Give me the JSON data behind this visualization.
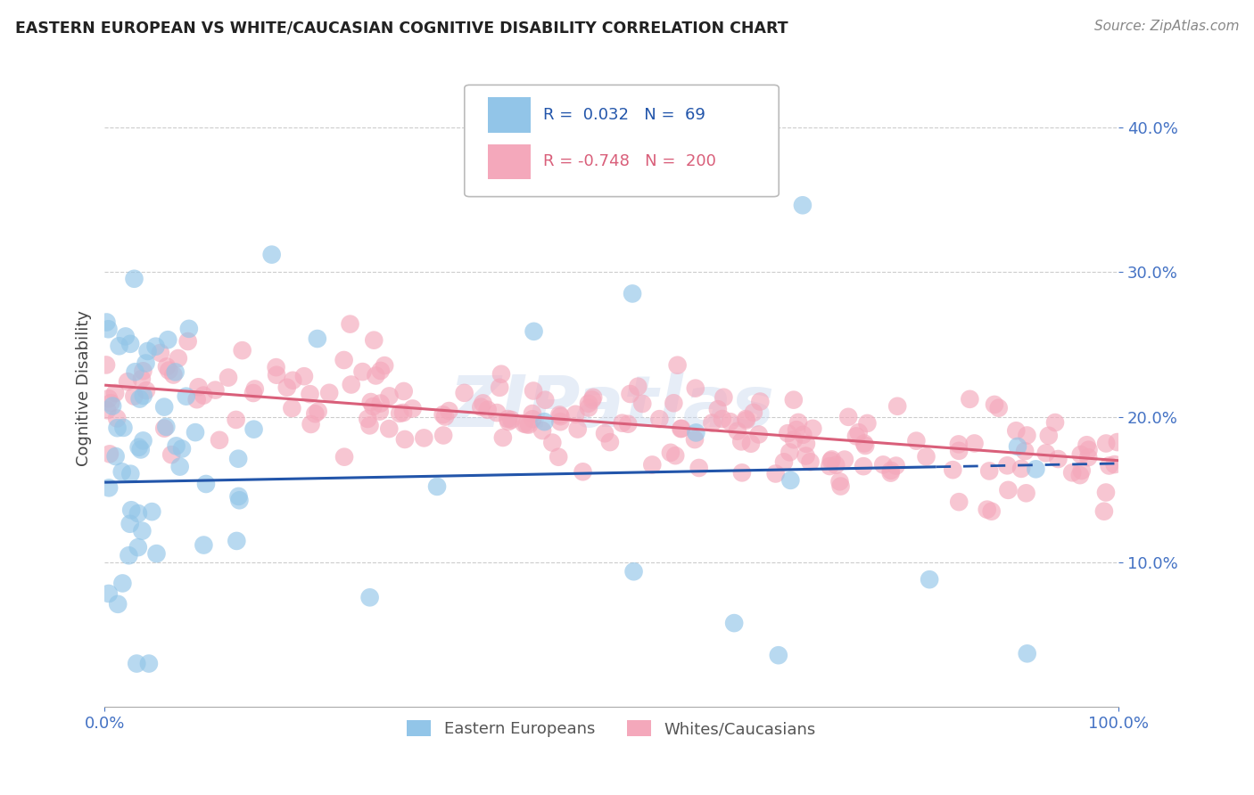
{
  "title": "EASTERN EUROPEAN VS WHITE/CAUCASIAN COGNITIVE DISABILITY CORRELATION CHART",
  "source": "Source: ZipAtlas.com",
  "ylabel": "Cognitive Disability",
  "xlim": [
    0,
    1
  ],
  "ylim": [
    0,
    0.44
  ],
  "yticks": [
    0.1,
    0.2,
    0.3,
    0.4
  ],
  "ytick_labels": [
    "10.0%",
    "20.0%",
    "30.0%",
    "40.0%"
  ],
  "xticks": [
    0.0,
    1.0
  ],
  "xtick_labels": [
    "0.0%",
    "100.0%"
  ],
  "blue_R": 0.032,
  "blue_N": 69,
  "pink_R": -0.748,
  "pink_N": 200,
  "blue_color": "#92C5E8",
  "pink_color": "#F4A8BB",
  "blue_line_color": "#2255AA",
  "pink_line_color": "#D95F7A",
  "legend_label_blue": "Eastern Europeans",
  "legend_label_pink": "Whites/Caucasians",
  "background_color": "#FFFFFF",
  "grid_color": "#CCCCCC",
  "title_color": "#222222",
  "source_color": "#888888",
  "axis_label_color": "#444444",
  "tick_color": "#4472C4",
  "seed": 7,
  "blue_line_start_y": 0.155,
  "blue_line_end_y": 0.168,
  "blue_line_solid_end": 0.82,
  "pink_line_start_y": 0.222,
  "pink_line_end_y": 0.17
}
